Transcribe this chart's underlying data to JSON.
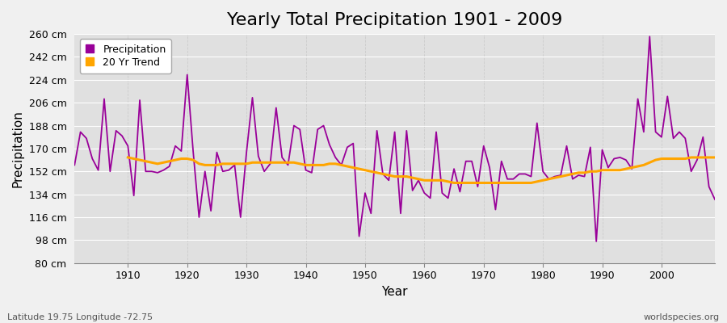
{
  "title": "Yearly Total Precipitation 1901 - 2009",
  "xlabel": "Year",
  "ylabel": "Precipitation",
  "subtitle": "Latitude 19.75 Longitude -72.75",
  "watermark": "worldspecies.org",
  "years": [
    1901,
    1902,
    1903,
    1904,
    1905,
    1906,
    1907,
    1908,
    1909,
    1910,
    1911,
    1912,
    1913,
    1914,
    1915,
    1916,
    1917,
    1918,
    1919,
    1920,
    1921,
    1922,
    1923,
    1924,
    1925,
    1926,
    1927,
    1928,
    1929,
    1930,
    1931,
    1932,
    1933,
    1934,
    1935,
    1936,
    1937,
    1938,
    1939,
    1940,
    1941,
    1942,
    1943,
    1944,
    1945,
    1946,
    1947,
    1948,
    1949,
    1950,
    1951,
    1952,
    1953,
    1954,
    1955,
    1956,
    1957,
    1958,
    1959,
    1960,
    1961,
    1962,
    1963,
    1964,
    1965,
    1966,
    1967,
    1968,
    1969,
    1970,
    1971,
    1972,
    1973,
    1974,
    1975,
    1976,
    1977,
    1978,
    1979,
    1980,
    1981,
    1982,
    1983,
    1984,
    1985,
    1986,
    1987,
    1988,
    1989,
    1990,
    1991,
    1992,
    1993,
    1994,
    1995,
    1996,
    1997,
    1998,
    1999,
    2000,
    2001,
    2002,
    2003,
    2004,
    2005,
    2006,
    2007,
    2008,
    2009
  ],
  "precipitation": [
    157,
    183,
    178,
    162,
    153,
    209,
    152,
    184,
    180,
    172,
    133,
    208,
    152,
    152,
    151,
    153,
    156,
    172,
    168,
    228,
    168,
    116,
    152,
    121,
    167,
    152,
    153,
    157,
    116,
    167,
    210,
    164,
    152,
    158,
    202,
    163,
    157,
    188,
    185,
    153,
    151,
    185,
    188,
    173,
    163,
    157,
    171,
    174,
    101,
    135,
    119,
    184,
    150,
    145,
    183,
    119,
    184,
    137,
    145,
    135,
    131,
    183,
    135,
    131,
    154,
    136,
    160,
    160,
    140,
    172,
    155,
    122,
    160,
    146,
    146,
    150,
    150,
    148,
    190,
    152,
    146,
    148,
    149,
    172,
    146,
    149,
    148,
    171,
    97,
    169,
    155,
    162,
    163,
    161,
    154,
    209,
    183,
    258,
    183,
    179,
    211,
    178,
    183,
    178,
    152,
    161,
    179,
    140,
    130
  ],
  "trend_years": [
    1910,
    1911,
    1912,
    1913,
    1914,
    1915,
    1916,
    1917,
    1918,
    1919,
    1920,
    1921,
    1922,
    1923,
    1924,
    1925,
    1926,
    1927,
    1928,
    1929,
    1930,
    1931,
    1932,
    1933,
    1934,
    1935,
    1936,
    1937,
    1938,
    1939,
    1940,
    1941,
    1942,
    1943,
    1944,
    1945,
    1946,
    1947,
    1948,
    1949,
    1950,
    1951,
    1952,
    1953,
    1954,
    1955,
    1956,
    1957,
    1958,
    1959,
    1960,
    1961,
    1962,
    1963,
    1964,
    1965,
    1966,
    1967,
    1968,
    1969,
    1970,
    1971,
    1972,
    1973,
    1974,
    1975,
    1976,
    1977,
    1978,
    1979,
    1980,
    1981,
    1982,
    1983,
    1984,
    1985,
    1986,
    1987,
    1988,
    1989,
    1990,
    1991,
    1992,
    1993,
    1994,
    1995,
    1996,
    1997,
    1998,
    1999,
    2000,
    2001,
    2002,
    2003,
    2004,
    2005,
    2006,
    2007,
    2008,
    2009
  ],
  "trend": [
    163,
    162,
    161,
    160,
    159,
    158,
    159,
    160,
    161,
    162,
    162,
    161,
    158,
    157,
    157,
    157,
    158,
    158,
    158,
    158,
    158,
    159,
    159,
    159,
    159,
    159,
    159,
    159,
    159,
    158,
    157,
    157,
    157,
    157,
    158,
    158,
    157,
    156,
    155,
    154,
    153,
    152,
    151,
    150,
    149,
    148,
    148,
    148,
    147,
    146,
    145,
    145,
    145,
    145,
    144,
    143,
    143,
    143,
    143,
    143,
    143,
    143,
    143,
    143,
    143,
    143,
    143,
    143,
    143,
    144,
    145,
    146,
    147,
    148,
    149,
    150,
    151,
    151,
    152,
    152,
    153,
    153,
    153,
    153,
    154,
    155,
    156,
    157,
    159,
    161,
    162,
    162,
    162,
    162,
    162,
    163,
    163,
    163,
    163,
    163
  ],
  "precip_color": "#990099",
  "trend_color": "#FFA500",
  "bg_color": "#f0f0f0",
  "plot_bg_color": "#e0e0e0",
  "grid_color_h": "#ffffff",
  "grid_color_v": "#cccccc",
  "ylim": [
    80,
    260
  ],
  "yticks": [
    80,
    98,
    116,
    134,
    152,
    170,
    188,
    206,
    224,
    242,
    260
  ],
  "xlim": [
    1901,
    2009
  ],
  "xticks": [
    1910,
    1920,
    1930,
    1940,
    1950,
    1960,
    1970,
    1980,
    1990,
    2000
  ],
  "title_fontsize": 16,
  "axis_label_fontsize": 11,
  "tick_fontsize": 9,
  "legend_fontsize": 9
}
